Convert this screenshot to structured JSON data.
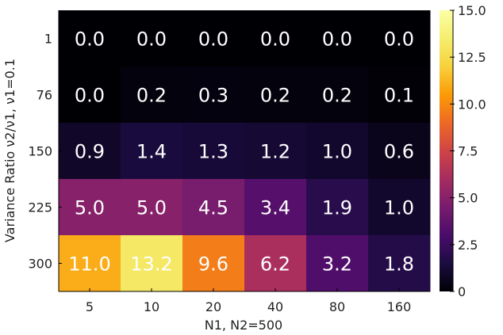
{
  "chart_data": {
    "type": "heatmap",
    "title": "",
    "xlabel": "N1, N2=500",
    "ylabel": "Variance Ratio ν2/ν1, ν1=0.1",
    "x_categories": [
      "5",
      "10",
      "20",
      "40",
      "80",
      "160"
    ],
    "y_categories": [
      "1",
      "76",
      "150",
      "225",
      "300"
    ],
    "values": [
      [
        0.0,
        0.0,
        0.0,
        0.0,
        0.0,
        0.0
      ],
      [
        0.0,
        0.2,
        0.3,
        0.2,
        0.2,
        0.1
      ],
      [
        0.9,
        1.4,
        1.3,
        1.2,
        1.0,
        0.6
      ],
      [
        5.0,
        5.0,
        4.5,
        3.4,
        1.9,
        1.0
      ],
      [
        11.0,
        13.2,
        9.6,
        6.2,
        3.2,
        1.8
      ]
    ],
    "value_labels": [
      [
        "0.0",
        "0.0",
        "0.0",
        "0.0",
        "0.0",
        "0.0"
      ],
      [
        "0.0",
        "0.2",
        "0.3",
        "0.2",
        "0.2",
        "0.1"
      ],
      [
        "0.9",
        "1.4",
        "1.3",
        "1.2",
        "1.0",
        "0.6"
      ],
      [
        "5.0",
        "5.0",
        "4.5",
        "3.4",
        "1.9",
        "1.0"
      ],
      [
        "11.0",
        "13.2",
        "9.6",
        "6.2",
        "3.2",
        "1.8"
      ]
    ],
    "colorscale": "inferno",
    "color_range": [
      0,
      15
    ],
    "colorbar_ticks": [
      0,
      2.5,
      5.0,
      7.5,
      10.0,
      12.5,
      15.0
    ],
    "colorbar_tick_labels": [
      "0",
      "2.5",
      "5.0",
      "7.5",
      "10.0",
      "12.5",
      "15.0"
    ],
    "grid": false
  }
}
